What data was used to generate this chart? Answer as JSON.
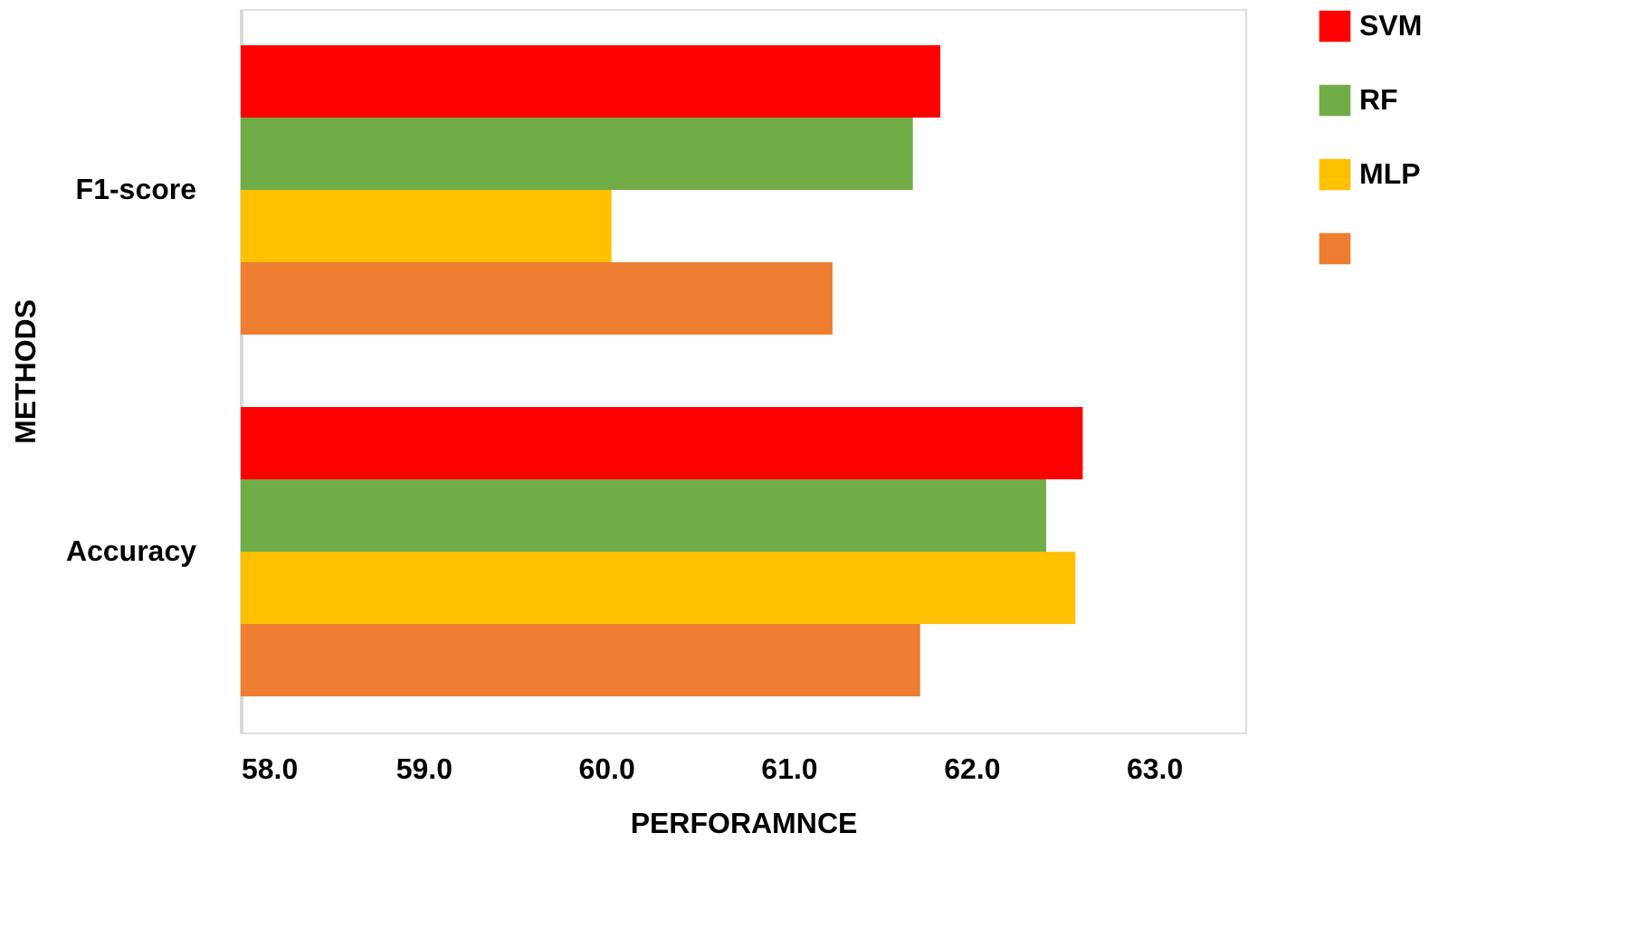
{
  "chart_data": {
    "type": "bar",
    "orientation": "horizontal",
    "xlabel": "PERFORAMNCE",
    "ylabel": "METHODS",
    "categories": [
      "F1-score",
      "Accuracy"
    ],
    "series": [
      {
        "name": "SVM",
        "color": "#ff0000",
        "values": [
          61.83,
          62.61
        ]
      },
      {
        "name": "RF",
        "color": "#70ad47",
        "values": [
          61.68,
          62.41
        ]
      },
      {
        "name": "MLP",
        "color": "#ffc000",
        "values": [
          60.03,
          62.57
        ]
      },
      {
        "color": "#ed7d31",
        "values": [
          61.24,
          61.72
        ]
      }
    ],
    "xlim": [
      58.0,
      63.5
    ],
    "xticks": [
      {
        "value": 58,
        "label": "58.0"
      },
      {
        "value": 59,
        "label": "59.0"
      },
      {
        "value": 60,
        "label": "60.0"
      },
      {
        "value": 61,
        "label": "61.0"
      },
      {
        "value": 62,
        "label": "62.0"
      },
      {
        "value": 63,
        "label": "63.0"
      }
    ],
    "grid": false,
    "legend": "right"
  }
}
